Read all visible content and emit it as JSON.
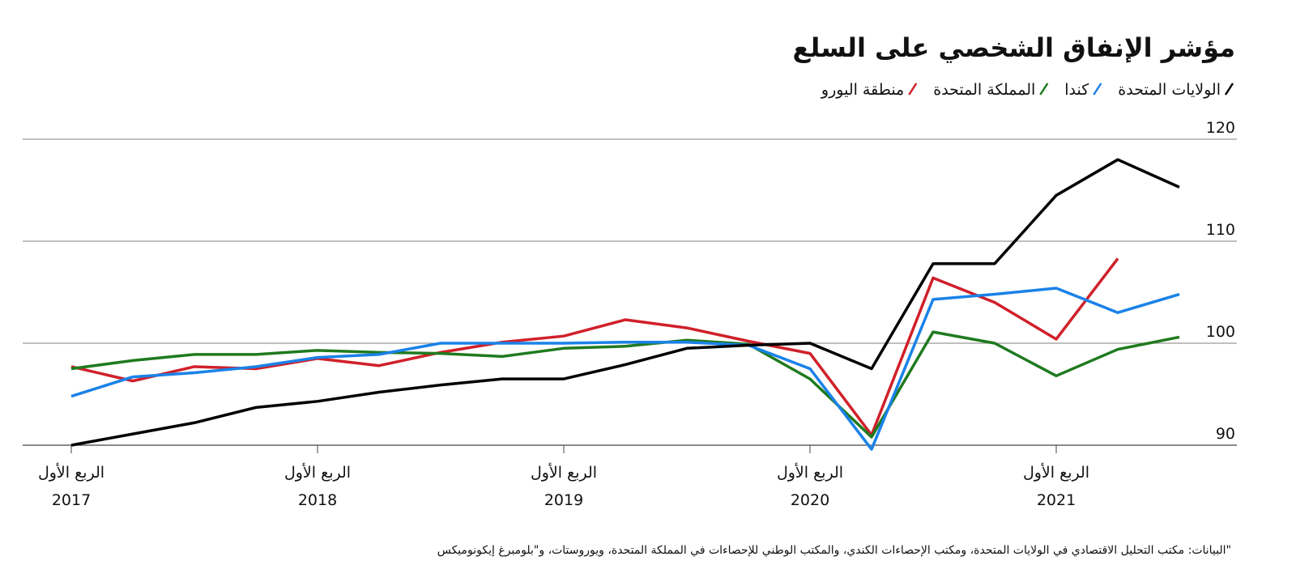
{
  "chart_data": {
    "type": "line",
    "title": "مؤشر الإنفاق الشخصي على السلع",
    "x_tick_prefix": "الربع الأول",
    "categories": [
      "2017",
      null,
      null,
      null,
      "2018",
      null,
      null,
      null,
      "2019",
      null,
      null,
      null,
      "2020",
      null,
      null,
      null,
      "2021",
      null,
      null
    ],
    "series": [
      {
        "name": "الولايات المتحدة",
        "color": "#000000",
        "values": [
          90.0,
          91.1,
          92.2,
          93.7,
          94.3,
          95.2,
          95.9,
          96.5,
          96.5,
          97.9,
          99.5,
          99.8,
          100.0,
          97.5,
          107.8,
          107.8,
          114.5,
          118.0,
          115.3
        ]
      },
      {
        "name": "كندا",
        "color": "#1a82e8",
        "values": [
          94.8,
          96.7,
          97.1,
          97.7,
          98.6,
          98.9,
          100.0,
          100.0,
          100.0,
          100.1,
          100.1,
          99.8,
          97.5,
          89.6,
          104.3,
          104.8,
          105.4,
          103.0,
          104.8
        ]
      },
      {
        "name": "المملكة المتحدة",
        "color": "#1f7a1f",
        "values": [
          97.5,
          98.3,
          98.9,
          98.9,
          99.3,
          99.1,
          99.0,
          98.7,
          99.5,
          99.7,
          100.3,
          99.9,
          96.5,
          90.8,
          101.1,
          100.0,
          96.8,
          99.4,
          100.6
        ]
      },
      {
        "name": "منطقة اليورو",
        "color": "#d0202a",
        "values": [
          97.7,
          96.3,
          97.7,
          97.5,
          98.5,
          97.8,
          99.1,
          100.1,
          100.7,
          102.3,
          101.5,
          100.2,
          99.0,
          91.0,
          106.4,
          104.0,
          100.4,
          108.3,
          null
        ]
      }
    ],
    "ylim": [
      90,
      120
    ],
    "yticks": [
      90,
      100,
      110,
      120
    ],
    "grid": true,
    "source": "البيانات: مكتب التحليل الاقتصادي في الولايات المتحدة، ومكتب الإحصاءات الكندي، والمكتب الوطني للإحصاءات في المملكة المتحدة، ويوروستات، و\"بلومبرغ إيكونوميكس\""
  }
}
